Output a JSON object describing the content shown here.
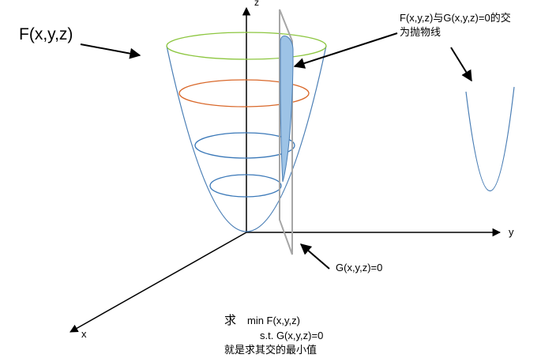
{
  "title": "F(x,y,z)",
  "axes": {
    "x": "x",
    "y": "y",
    "z": "z"
  },
  "intersection_note": {
    "line1": "F(x,y,z)与G(x,y,z)=0的交",
    "line2": "为抛物线"
  },
  "plane_label": "G(x,y,z)=0",
  "problem": {
    "qiu": "求",
    "objective": "min F(x,y,z)",
    "constraint": "s.t.  G(x,y,z)=0",
    "conclusion": "就是求其交的最小值"
  },
  "colors": {
    "surface": "#4a7eb5",
    "ring_top": "#8cc63f",
    "ring_mid": "#d9682a",
    "ring_low": "#3a78b8",
    "plane": "#a6a6a6",
    "intersection_fill": "#9dc3e6",
    "intersection_stroke": "#4a7eb5"
  }
}
